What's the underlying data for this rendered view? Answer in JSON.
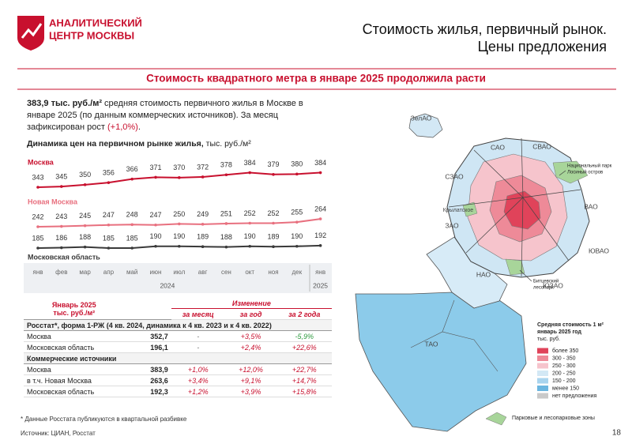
{
  "header": {
    "logo": [
      "АНАЛИТИЧЕСКИЙ",
      "ЦЕНТР МОСКВЫ"
    ],
    "title": [
      "Стоимость жилья, первичный рынок.",
      "Цены предложения"
    ]
  },
  "banner": "Стоимость квадратного метра в январе 2025 продолжила расти",
  "intro": {
    "bold": "383,9 тыс. руб./м²",
    "text": " средняя стоимость первичного жилья в Москве в январе 2025  (по данным коммерческих источников). За месяц зафиксирован рост ",
    "highlight": "(+1,0%)",
    "end": "."
  },
  "chart_data": {
    "type": "line",
    "title": "Динамика цен на первичном рынке жилья,",
    "unit": " тыс. руб./м²",
    "categories": [
      "янв",
      "фев",
      "мар",
      "апр",
      "май",
      "июн",
      "июл",
      "авг",
      "сен",
      "окт",
      "ноя",
      "дек",
      "янв"
    ],
    "years": [
      "2024",
      "2025"
    ],
    "series": [
      {
        "name": "Москва",
        "color": "#c8102e",
        "values": [
          343,
          345,
          350,
          356,
          366,
          371,
          370,
          372,
          378,
          384,
          379,
          380,
          384
        ]
      },
      {
        "name": "Новая Москва",
        "color": "#e8707f",
        "values": [
          242,
          243,
          245,
          247,
          248,
          247,
          250,
          249,
          251,
          252,
          252,
          255,
          264
        ]
      },
      {
        "name": "Московская область",
        "color": "#3a3a3a",
        "values": [
          185,
          186,
          188,
          185,
          185,
          190,
          190,
          189,
          188,
          190,
          189,
          190,
          192
        ]
      }
    ]
  },
  "table": {
    "header": {
      "left": [
        "Январь  2025",
        "тыс. руб./м²"
      ],
      "change": "Изменение",
      "cols": [
        "за месяц",
        "за год",
        "за 2 года"
      ]
    },
    "sections": [
      {
        "title": "Росстат*, форма 1-РЖ (4 кв. 2024, динамика к 4 кв. 2023 и к 4 кв. 2022)",
        "rows": [
          [
            "Москва",
            "352,7",
            "-",
            "+3,5%",
            "-5,9%"
          ],
          [
            "Московская область",
            "196,1",
            "-",
            "+2,4%",
            "+22,6%"
          ]
        ]
      },
      {
        "title": "Коммерческие источники",
        "rows": [
          [
            "Москва",
            "383,9",
            "+1,0%",
            "+12,0%",
            "+22,7%"
          ],
          [
            "в т.ч. Новая Москва",
            "263,6",
            "+3,4%",
            "+9,1%",
            "+14,7%"
          ],
          [
            "Московская область",
            "192,3",
            "+1,2%",
            "+3,9%",
            "+15,8%"
          ]
        ]
      }
    ]
  },
  "map": {
    "labels": [
      "ЗелАО",
      "САО",
      "СВАО",
      "СЗАО",
      "Крылатское",
      "ЗАО",
      "ВАО",
      "ЮВАО",
      "ЮЗАО",
      "НАО",
      "ТАО"
    ],
    "parks": [
      [
        "Национальный парк",
        "Лосиный остров"
      ],
      [
        "Битцевский",
        "лесопарк"
      ]
    ],
    "legend_title": [
      "Средняя стоимость 1 м²",
      "январь 2025 год",
      "тыс. руб."
    ],
    "legend": [
      {
        "label": "более 350",
        "color": "#e0435a"
      },
      {
        "label": "300 - 350",
        "color": "#ee8a98"
      },
      {
        "label": "250 - 300",
        "color": "#f6c4cc"
      },
      {
        "label": "200 - 250",
        "color": "#d3e8f5"
      },
      {
        "label": "150 - 200",
        "color": "#a9d4ee"
      },
      {
        "label": "менее 150",
        "color": "#6cb6e0"
      },
      {
        "label": "нет предложения",
        "color": "#c9c9c9"
      }
    ],
    "parks_legend": "Парковые и лесопарковые зоны"
  },
  "footnote": "* Данные Росстата публикуются в квартальной разбивке",
  "source": "Источник: ЦИАН, Росстат",
  "page": "18"
}
